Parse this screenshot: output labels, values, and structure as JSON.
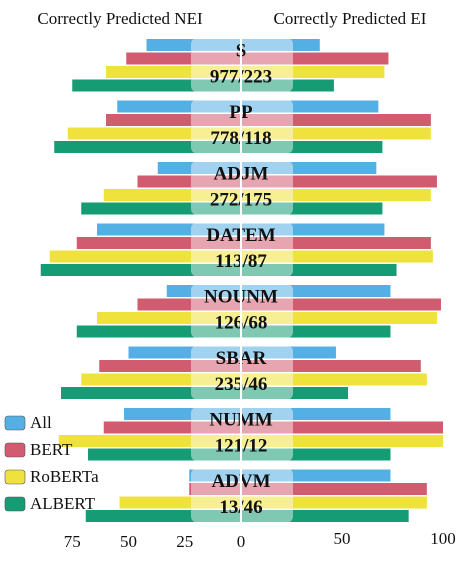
{
  "chart_data": {
    "type": "butterfly",
    "title_left": "Correctly Predicted NEI",
    "title_right": "Correctly Predicted EI",
    "categories": [
      "S",
      "PP",
      "ADJM",
      "DATEM",
      "NOUNM",
      "SBAR",
      "NUMM",
      "ADVM"
    ],
    "category_labels": [
      "977/223",
      "778/118",
      "272/175",
      "113/87",
      "126/68",
      "235/46",
      "121/12",
      "13/46"
    ],
    "series": [
      {
        "name": "All",
        "color": "#54b0e4",
        "left_values": [
          42,
          55,
          37,
          64,
          33,
          50,
          52,
          23
        ],
        "right_values": [
          39,
          68,
          67,
          71,
          74,
          47,
          74,
          74
        ]
      },
      {
        "name": "BERT",
        "color": "#d15c70",
        "left_values": [
          51,
          60,
          46,
          73,
          46,
          63,
          61,
          23
        ],
        "right_values": [
          73,
          94,
          97,
          94,
          99,
          89,
          100,
          92
        ]
      },
      {
        "name": "RoBERTa",
        "color": "#f0e23c",
        "left_values": [
          60,
          77,
          61,
          85,
          64,
          71,
          81,
          54
        ],
        "right_values": [
          71,
          94,
          94,
          95,
          97,
          92,
          100,
          92
        ]
      },
      {
        "name": "ALBERT",
        "color": "#169c74",
        "left_values": [
          75,
          83,
          71,
          89,
          73,
          80,
          68,
          69
        ],
        "right_values": [
          46,
          70,
          70,
          77,
          74,
          53,
          74,
          83
        ]
      }
    ],
    "left_xlim": [
      0,
      100
    ],
    "right_xlim": [
      0,
      100
    ],
    "left_xticks": [
      75,
      50,
      25,
      0
    ],
    "right_xticks": [
      50,
      100
    ]
  }
}
